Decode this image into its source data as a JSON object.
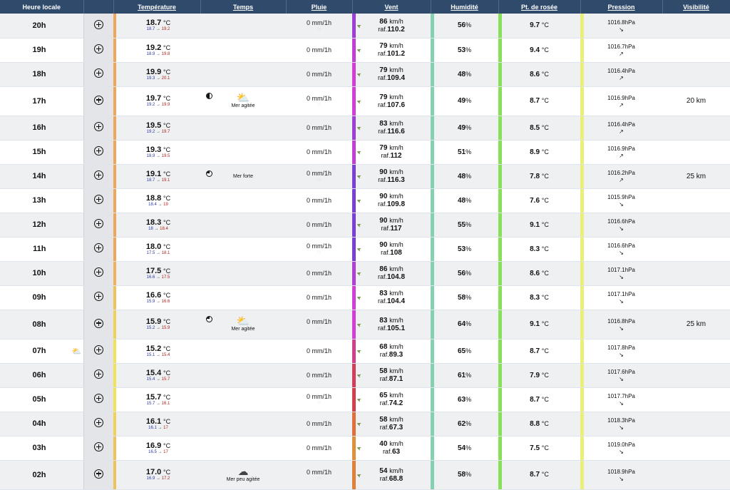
{
  "headers": {
    "heure": "Heure locale",
    "temperature": "Température",
    "temps": "Temps",
    "pluie": "Pluie",
    "vent": "Vent",
    "humidite": "Humidité",
    "rosee": "Pt. de rosée",
    "pression": "Pression",
    "visibilite": "Visibilité"
  },
  "units": {
    "temp": "°C",
    "rain": "mm/1h",
    "wind": "km/h",
    "raf": "raf.",
    "hum": "%",
    "pres": "hPa",
    "arrow": "→"
  },
  "rows": [
    {
      "time": "20h",
      "temp": "18.7",
      "tmin": "18.7",
      "tmax": "19.2",
      "tcolor": "#f0a65a",
      "moon": "",
      "icon": "",
      "sea": "",
      "rain": "0",
      "drop": true,
      "wind": "86",
      "raf": "110.2",
      "wcolor": "#9b3fd6",
      "hum": "56",
      "hcolor": "#84d0b0",
      "dew": "9.7",
      "dcolor": "#88e05a",
      "pres": "1016.8",
      "parr": "↘",
      "pcolor": "#e8f07a",
      "vis": ""
    },
    {
      "time": "19h",
      "temp": "19.2",
      "tmin": "18.9",
      "tmax": "19.8",
      "tcolor": "#f0a65a",
      "moon": "",
      "icon": "",
      "sea": "",
      "rain": "0",
      "drop": false,
      "wind": "79",
      "raf": "101.2",
      "wcolor": "#c23fd6",
      "hum": "53",
      "hcolor": "#84d0b0",
      "dew": "9.4",
      "dcolor": "#88e05a",
      "pres": "1016.7",
      "parr": "↗",
      "pcolor": "#e8f07a",
      "vis": ""
    },
    {
      "time": "18h",
      "temp": "19.9",
      "tmin": "19.3",
      "tmax": "20.1",
      "tcolor": "#f0a65a",
      "moon": "",
      "icon": "",
      "sea": "",
      "rain": "0",
      "drop": false,
      "wind": "79",
      "raf": "109.4",
      "wcolor": "#d23fd6",
      "hum": "48",
      "hcolor": "#84d0b0",
      "dew": "8.6",
      "dcolor": "#88e05a",
      "pres": "1016.4",
      "parr": "↗",
      "pcolor": "#e8f07a",
      "vis": ""
    },
    {
      "time": "17h",
      "temp": "19.7",
      "tmin": "19.2",
      "tmax": "19.9",
      "tcolor": "#f0a65a",
      "moon": "half",
      "icon": "⛅",
      "sea": "Mer agitée",
      "rain": "0",
      "drop": true,
      "wind": "79",
      "raf": "107.6",
      "wcolor": "#d23fd6",
      "hum": "49",
      "hcolor": "#84d0b0",
      "dew": "8.7",
      "dcolor": "#88e05a",
      "pres": "1016.9",
      "parr": "↗",
      "pcolor": "#e8f07a",
      "vis": "20 km"
    },
    {
      "time": "16h",
      "temp": "19.5",
      "tmin": "19.2",
      "tmax": "19.7",
      "tcolor": "#f0a65a",
      "moon": "",
      "icon": "",
      "sea": "",
      "rain": "0",
      "drop": false,
      "wind": "83",
      "raf": "116.6",
      "wcolor": "#9b3fd6",
      "hum": "49",
      "hcolor": "#84d0b0",
      "dew": "8.5",
      "dcolor": "#88e05a",
      "pres": "1016.4",
      "parr": "↗",
      "pcolor": "#e8f07a",
      "vis": ""
    },
    {
      "time": "15h",
      "temp": "19.3",
      "tmin": "18.9",
      "tmax": "19.5",
      "tcolor": "#f0a65a",
      "moon": "",
      "icon": "",
      "sea": "",
      "rain": "0",
      "drop": false,
      "wind": "79",
      "raf": "112",
      "wcolor": "#c23fd6",
      "hum": "51",
      "hcolor": "#84d0b0",
      "dew": "8.9",
      "dcolor": "#88e05a",
      "pres": "1016.9",
      "parr": "↗",
      "pcolor": "#e8f07a",
      "vis": ""
    },
    {
      "time": "14h",
      "temp": "19.1",
      "tmin": "18.7",
      "tmax": "19.1",
      "tcolor": "#f0a65a",
      "moon": "q3",
      "icon": "",
      "sea": "Mer forte",
      "rain": "0",
      "drop": true,
      "wind": "90",
      "raf": "116.3",
      "wcolor": "#7a3fd6",
      "hum": "48",
      "hcolor": "#84d0b0",
      "dew": "7.8",
      "dcolor": "#88e05a",
      "pres": "1016.2",
      "parr": "↗",
      "pcolor": "#e8f07a",
      "vis": "25 km"
    },
    {
      "time": "13h",
      "temp": "18.8",
      "tmin": "18.4",
      "tmax": "19",
      "tcolor": "#f0a65a",
      "moon": "",
      "icon": "",
      "sea": "",
      "rain": "0",
      "drop": false,
      "wind": "90",
      "raf": "109.8",
      "wcolor": "#7a3fd6",
      "hum": "48",
      "hcolor": "#84d0b0",
      "dew": "7.6",
      "dcolor": "#88e05a",
      "pres": "1015.9",
      "parr": "↘",
      "pcolor": "#e8f07a",
      "vis": ""
    },
    {
      "time": "12h",
      "temp": "18.3",
      "tmin": "18",
      "tmax": "18.4",
      "tcolor": "#f0a65a",
      "moon": "",
      "icon": "",
      "sea": "",
      "rain": "0",
      "drop": false,
      "wind": "90",
      "raf": "117",
      "wcolor": "#7a3fd6",
      "hum": "55",
      "hcolor": "#84d0b0",
      "dew": "9.1",
      "dcolor": "#88e05a",
      "pres": "1016.6",
      "parr": "↘",
      "pcolor": "#e8f07a",
      "vis": ""
    },
    {
      "time": "11h",
      "temp": "18.0",
      "tmin": "17.5",
      "tmax": "18.1",
      "tcolor": "#f0a65a",
      "moon": "",
      "icon": "",
      "sea": "",
      "rain": "0",
      "drop": true,
      "wind": "90",
      "raf": "108",
      "wcolor": "#7a3fd6",
      "hum": "53",
      "hcolor": "#84d0b0",
      "dew": "8.3",
      "dcolor": "#88e05a",
      "pres": "1016.6",
      "parr": "↘",
      "pcolor": "#e8f07a",
      "vis": ""
    },
    {
      "time": "10h",
      "temp": "17.5",
      "tmin": "16.6",
      "tmax": "17.5",
      "tcolor": "#f0b25a",
      "moon": "",
      "icon": "",
      "sea": "",
      "rain": "0",
      "drop": false,
      "wind": "86",
      "raf": "104.8",
      "wcolor": "#b03fd6",
      "hum": "56",
      "hcolor": "#84d0b0",
      "dew": "8.6",
      "dcolor": "#88e05a",
      "pres": "1017.1",
      "parr": "↘",
      "pcolor": "#e8f07a",
      "vis": ""
    },
    {
      "time": "09h",
      "temp": "16.6",
      "tmin": "15.9",
      "tmax": "16.6",
      "tcolor": "#f0c25a",
      "moon": "",
      "icon": "",
      "sea": "",
      "rain": "0",
      "drop": false,
      "wind": "83",
      "raf": "104.4",
      "wcolor": "#d23fd6",
      "hum": "58",
      "hcolor": "#84d0b0",
      "dew": "8.3",
      "dcolor": "#88e05a",
      "pres": "1017.1",
      "parr": "↘",
      "pcolor": "#e8f07a",
      "vis": ""
    },
    {
      "time": "08h",
      "temp": "15.9",
      "tmin": "15.2",
      "tmax": "15.9",
      "tcolor": "#f0d25a",
      "moon": "q3",
      "icon": "⛅",
      "sea": "Mer agitée",
      "rain": "0",
      "drop": true,
      "wind": "83",
      "raf": "105.1",
      "wcolor": "#d23fd6",
      "hum": "64",
      "hcolor": "#84d0b0",
      "dew": "9.1",
      "dcolor": "#88e05a",
      "pres": "1016.8",
      "parr": "↘",
      "pcolor": "#e8f07a",
      "vis": "25 km"
    },
    {
      "time": "07h",
      "temp": "15.2",
      "tmin": "15.1",
      "tmax": "15.4",
      "tcolor": "#f0e25a",
      "moon": "",
      "icon": "",
      "sea": "",
      "rain": "0",
      "drop": false,
      "wind": "68",
      "raf": "89.3",
      "wcolor": "#d23f8a",
      "hum": "65",
      "hcolor": "#84d0b0",
      "dew": "8.7",
      "dcolor": "#88e05a",
      "pres": "1017.8",
      "parr": "↘",
      "pcolor": "#e8f07a",
      "vis": "",
      "sunrise": true
    },
    {
      "time": "06h",
      "temp": "15.4",
      "tmin": "15.4",
      "tmax": "15.7",
      "tcolor": "#f0e25a",
      "moon": "",
      "icon": "",
      "sea": "",
      "rain": "0",
      "drop": false,
      "wind": "58",
      "raf": "87.1",
      "wcolor": "#d23f5a",
      "hum": "61",
      "hcolor": "#84d0b0",
      "dew": "7.9",
      "dcolor": "#88e05a",
      "pres": "1017.6",
      "parr": "↘",
      "pcolor": "#e8f07a",
      "vis": ""
    },
    {
      "time": "05h",
      "temp": "15.7",
      "tmin": "15.7",
      "tmax": "16.1",
      "tcolor": "#f0e25a",
      "moon": "",
      "icon": "",
      "sea": "",
      "rain": "0",
      "drop": true,
      "wind": "65",
      "raf": "74.2",
      "wcolor": "#d2404a",
      "hum": "63",
      "hcolor": "#84d0b0",
      "dew": "8.7",
      "dcolor": "#88e05a",
      "pres": "1017.7",
      "parr": "↘",
      "pcolor": "#e8f07a",
      "vis": ""
    },
    {
      "time": "04h",
      "temp": "16.1",
      "tmin": "16.1",
      "tmax": "17",
      "tcolor": "#f0d25a",
      "moon": "",
      "icon": "",
      "sea": "",
      "rain": "0",
      "drop": false,
      "wind": "58",
      "raf": "67.3",
      "wcolor": "#e0703a",
      "hum": "62",
      "hcolor": "#84d0b0",
      "dew": "8.8",
      "dcolor": "#88e05a",
      "pres": "1018.3",
      "parr": "↘",
      "pcolor": "#e8f07a",
      "vis": ""
    },
    {
      "time": "03h",
      "temp": "16.9",
      "tmin": "16.5",
      "tmax": "17",
      "tcolor": "#f0c25a",
      "moon": "",
      "icon": "",
      "sea": "",
      "rain": "0",
      "drop": false,
      "wind": "40",
      "raf": "63",
      "wcolor": "#e0903a",
      "hum": "54",
      "hcolor": "#84d0b0",
      "dew": "7.5",
      "dcolor": "#88e05a",
      "pres": "1019.0",
      "parr": "↘",
      "pcolor": "#e8f07a",
      "vis": ""
    },
    {
      "time": "02h",
      "temp": "17.0",
      "tmin": "16.9",
      "tmax": "17.2",
      "tcolor": "#f0c25a",
      "moon": "",
      "icon": "☁",
      "sea": "Mer peu agitée",
      "rain": "0",
      "drop": true,
      "wind": "54",
      "raf": "68.8",
      "wcolor": "#e0803a",
      "hum": "58",
      "hcolor": "#84d0b0",
      "dew": "8.7",
      "dcolor": "#88e05a",
      "pres": "1018.9",
      "parr": "↘",
      "pcolor": "#e8f07a",
      "vis": ""
    }
  ]
}
